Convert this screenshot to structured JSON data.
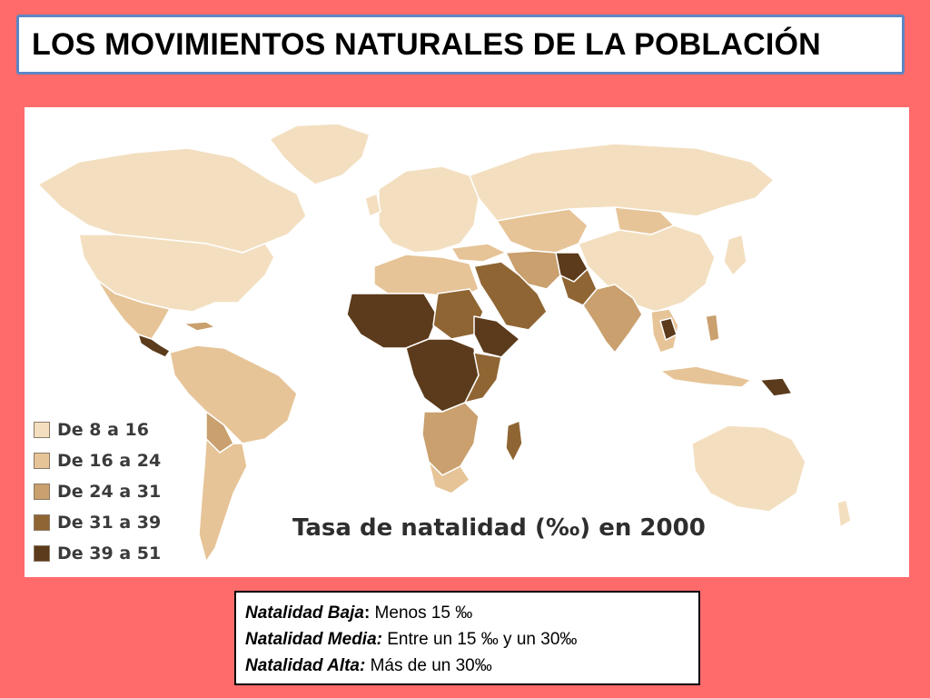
{
  "title": "LOS MOVIMIENTOS NATURALES DE LA POBLACIÓN",
  "map": {
    "caption": "Tasa de natalidad (‰) en 2000",
    "legend": [
      {
        "label": "De 8 a 16",
        "color": "#f3dfc0"
      },
      {
        "label": "De 16 a 24",
        "color": "#e6c497"
      },
      {
        "label": "De 24 a 31",
        "color": "#c9a06e"
      },
      {
        "label": "De 31 a 39",
        "color": "#8f6533"
      },
      {
        "label": "De 39 a 51",
        "color": "#5b3b1b"
      }
    ]
  },
  "info": {
    "baja": {
      "term": "Natalidad Baja",
      "sep": ":",
      "text": " Menos 15 ‰"
    },
    "media": {
      "term": "Natalidad Media:",
      "text": " Entre un 15 ‰ y un 30‰"
    },
    "alta": {
      "term": "Natalidad Alta:",
      "text": " Más de un 30‰"
    }
  }
}
